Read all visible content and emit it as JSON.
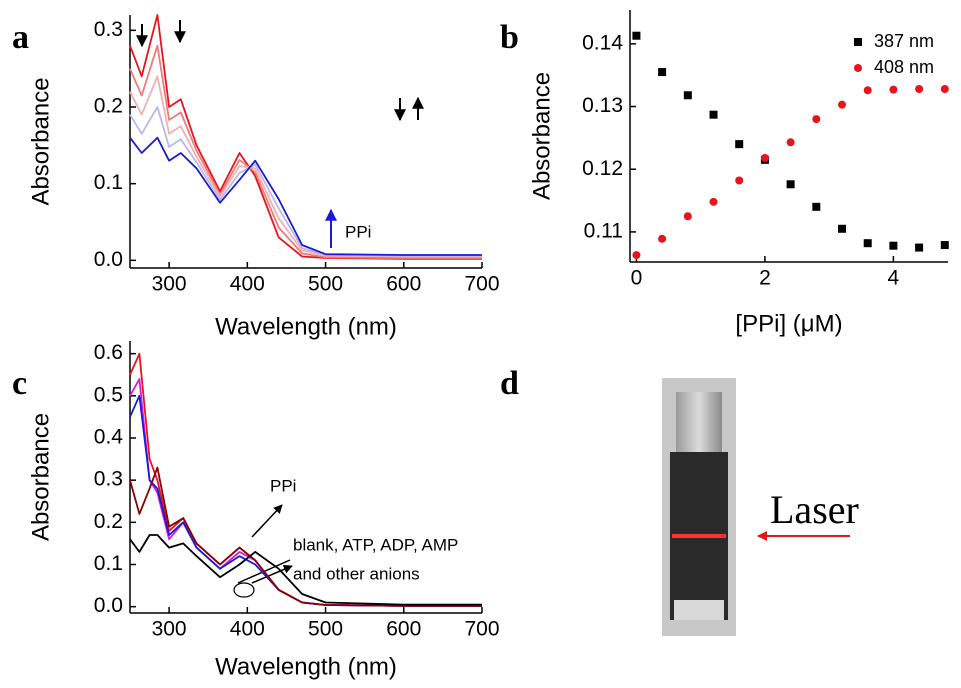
{
  "chart_data": [
    {
      "type": "line",
      "label": "a",
      "xlabel": "Wavelength (nm)",
      "ylabel": "Absorbance",
      "x": [
        250,
        265,
        285,
        300,
        315,
        335,
        365,
        390,
        410,
        440,
        470,
        500,
        600,
        700
      ],
      "series": [
        {
          "color": "#e8141c",
          "values": [
            0.28,
            0.24,
            0.32,
            0.2,
            0.21,
            0.15,
            0.09,
            0.14,
            0.11,
            0.03,
            0.005,
            0.003,
            0.002,
            0.002
          ]
        },
        {
          "color": "#f07a7a",
          "values": [
            0.25,
            0.215,
            0.28,
            0.183,
            0.193,
            0.143,
            0.086,
            0.131,
            0.115,
            0.043,
            0.009,
            0.004,
            0.003,
            0.003
          ]
        },
        {
          "color": "#f4b0b0",
          "values": [
            0.22,
            0.19,
            0.24,
            0.165,
            0.175,
            0.135,
            0.083,
            0.123,
            0.12,
            0.055,
            0.013,
            0.006,
            0.005,
            0.005
          ]
        },
        {
          "color": "#b8b8ec",
          "values": [
            0.19,
            0.165,
            0.2,
            0.148,
            0.158,
            0.128,
            0.079,
            0.114,
            0.125,
            0.068,
            0.016,
            0.007,
            0.006,
            0.006
          ]
        },
        {
          "color": "#1a1ad8",
          "values": [
            0.16,
            0.14,
            0.16,
            0.13,
            0.14,
            0.12,
            0.075,
            0.105,
            0.13,
            0.08,
            0.02,
            0.008,
            0.007,
            0.007
          ]
        }
      ],
      "xlim": [
        250,
        700
      ],
      "ylim": [
        -0.01,
        0.32
      ],
      "xticks": [
        300,
        400,
        500,
        600,
        700
      ],
      "yticks": [
        {
          "value": 0,
          "label": "0.0"
        },
        0.1,
        0.2,
        0.3
      ],
      "annotations": [
        "PPi"
      ]
    },
    {
      "type": "scatter",
      "label": "b",
      "xlabel": "[PPi]  (μM)",
      "ylabel": "Absorbance",
      "x": [
        0,
        0.4,
        0.8,
        1.2,
        1.6,
        2,
        2.4,
        2.8,
        3.2,
        3.6,
        4,
        4.4,
        4.8
      ],
      "series": [
        {
          "name": "387 nm",
          "color": "#000000",
          "marker": "square",
          "values": [
            0.1413,
            0.1355,
            0.1318,
            0.1287,
            0.124,
            0.1215,
            0.1176,
            0.114,
            0.1105,
            0.1082,
            0.1078,
            0.1075,
            0.1079
          ]
        },
        {
          "name": "408 nm",
          "color": "#e8141c",
          "marker": "circle",
          "values": [
            0.1063,
            0.1089,
            0.1125,
            0.1148,
            0.1182,
            0.1218,
            0.1243,
            0.128,
            0.1303,
            0.1326,
            0.1327,
            0.1328,
            0.1328
          ]
        }
      ],
      "xlim": [
        -0.1,
        4.85
      ],
      "ylim": [
        0.1052,
        0.1454
      ],
      "xticks": [
        0,
        2,
        4
      ],
      "yticks": [
        0.11,
        0.12,
        0.13,
        0.14
      ],
      "legend": "upper right"
    },
    {
      "type": "line",
      "label": "c",
      "xlabel": "Wavelength (nm)",
      "ylabel": "Absorbance",
      "x": [
        250,
        262,
        275,
        285,
        300,
        318,
        335,
        365,
        390,
        410,
        440,
        470,
        500,
        600,
        700
      ],
      "series": [
        {
          "color": "#e8141c",
          "values": [
            0.55,
            0.6,
            0.35,
            0.3,
            0.18,
            0.21,
            0.15,
            0.1,
            0.14,
            0.11,
            0.04,
            0.01,
            0.004,
            0.002,
            0.002
          ]
        },
        {
          "color": "#d81ad8",
          "values": [
            0.5,
            0.54,
            0.3,
            0.27,
            0.16,
            0.2,
            0.14,
            0.09,
            0.13,
            0.11,
            0.04,
            0.01,
            0.004,
            0.002,
            0.002
          ]
        },
        {
          "color": "#1a1ad8",
          "values": [
            0.45,
            0.5,
            0.3,
            0.28,
            0.17,
            0.2,
            0.14,
            0.09,
            0.12,
            0.1,
            0.04,
            0.01,
            0.004,
            0.002,
            0.002
          ]
        },
        {
          "color": "#8b0000",
          "values": [
            0.3,
            0.22,
            0.28,
            0.33,
            0.19,
            0.21,
            0.15,
            0.1,
            0.14,
            0.11,
            0.04,
            0.01,
            0.004,
            0.002,
            0.002
          ]
        },
        {
          "color": "#000000",
          "values": [
            0.16,
            0.13,
            0.17,
            0.17,
            0.14,
            0.15,
            0.12,
            0.07,
            0.1,
            0.13,
            0.09,
            0.03,
            0.01,
            0.005,
            0.005
          ]
        }
      ],
      "xlim": [
        250,
        700
      ],
      "ylim": [
        -0.015,
        0.63
      ],
      "xticks": [
        300,
        400,
        500,
        600,
        700
      ],
      "yticks": [
        {
          "value": 0,
          "label": "0.0"
        },
        0.1,
        0.2,
        0.3,
        0.4,
        0.5,
        0.6
      ],
      "annotations": [
        "PPi",
        "blank, ATP, ADP, AMP",
        "and other anions"
      ]
    }
  ],
  "photo": {
    "label": "d",
    "text": "Laser"
  }
}
